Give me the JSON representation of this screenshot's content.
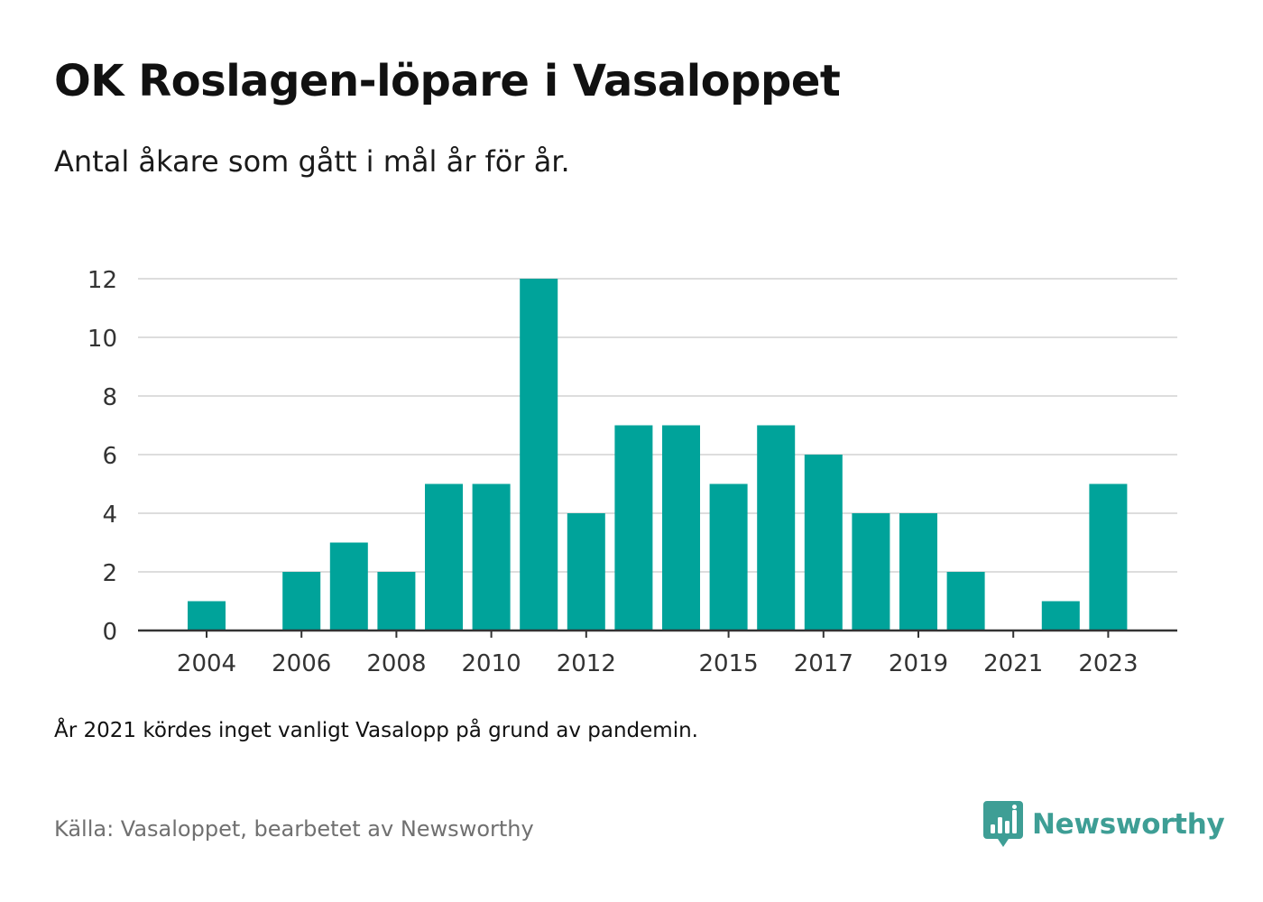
{
  "title": "OK Roslagen-löpare i Vasaloppet",
  "subtitle": "Antal åkare som gått i mål år för år.",
  "note": "År 2021 kördes inget vanligt Vasalopp på grund av pandemin.",
  "source": "Källa: Vasaloppet, bearbetet av Newsworthy",
  "brand": {
    "name": "Newsworthy",
    "icon": "newsworthy-logo-icon",
    "color": "#3e9e95"
  },
  "colors": {
    "bar": "#00a39a",
    "grid": "#dddddd",
    "axis": "#333333",
    "tick_text": "#333333"
  },
  "chart_data": {
    "type": "bar",
    "categories": [
      "2004",
      "2005",
      "2006",
      "2007",
      "2008",
      "2009",
      "2010",
      "2011",
      "2012",
      "2013",
      "2014",
      "2015",
      "2016",
      "2017",
      "2018",
      "2019",
      "2020",
      "2021",
      "2022",
      "2023"
    ],
    "values": [
      1,
      0,
      2,
      3,
      2,
      5,
      5,
      12,
      4,
      7,
      7,
      5,
      7,
      6,
      4,
      4,
      2,
      0,
      1,
      5
    ],
    "x_tick_labels": [
      "2004",
      "2006",
      "2008",
      "2010",
      "2012",
      "2015",
      "2017",
      "2019",
      "2021",
      "2023"
    ],
    "y_ticks": [
      0,
      2,
      4,
      6,
      8,
      10,
      12
    ],
    "ylim": [
      0,
      12
    ],
    "xlabel": "",
    "ylabel": "",
    "grid": true,
    "legend": false
  }
}
